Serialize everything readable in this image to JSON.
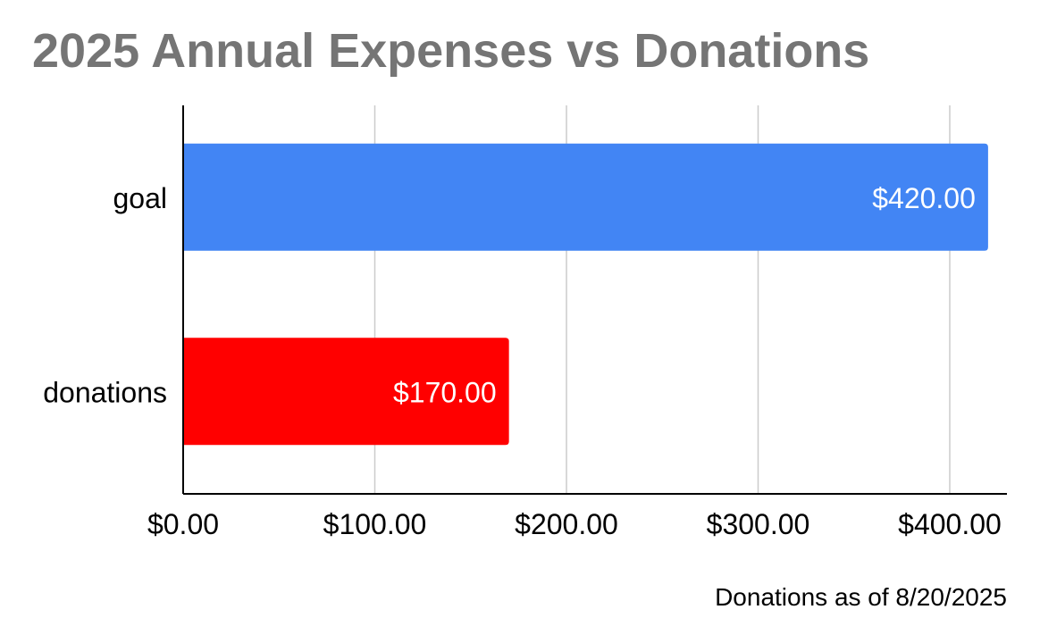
{
  "chart_data": {
    "type": "bar",
    "orientation": "horizontal",
    "title": "2025 Annual Expenses vs Donations",
    "categories": [
      "goal",
      "donations"
    ],
    "values": [
      420,
      170
    ],
    "data_labels": [
      "$420.00",
      "$170.00"
    ],
    "bar_colors": [
      "#4285f4",
      "#ff0000"
    ],
    "x_ticks": [
      0,
      100,
      200,
      300,
      400
    ],
    "x_tick_labels": [
      "$0.00",
      "$100.00",
      "$200.00",
      "$300.00",
      "$400.00"
    ],
    "xlim": [
      0,
      430
    ],
    "xlabel": "",
    "ylabel": "",
    "grid": true,
    "legend": "none",
    "footnote": "Donations as of 8/20/2025",
    "title_color": "#757575",
    "grid_color": "#cccccc"
  }
}
